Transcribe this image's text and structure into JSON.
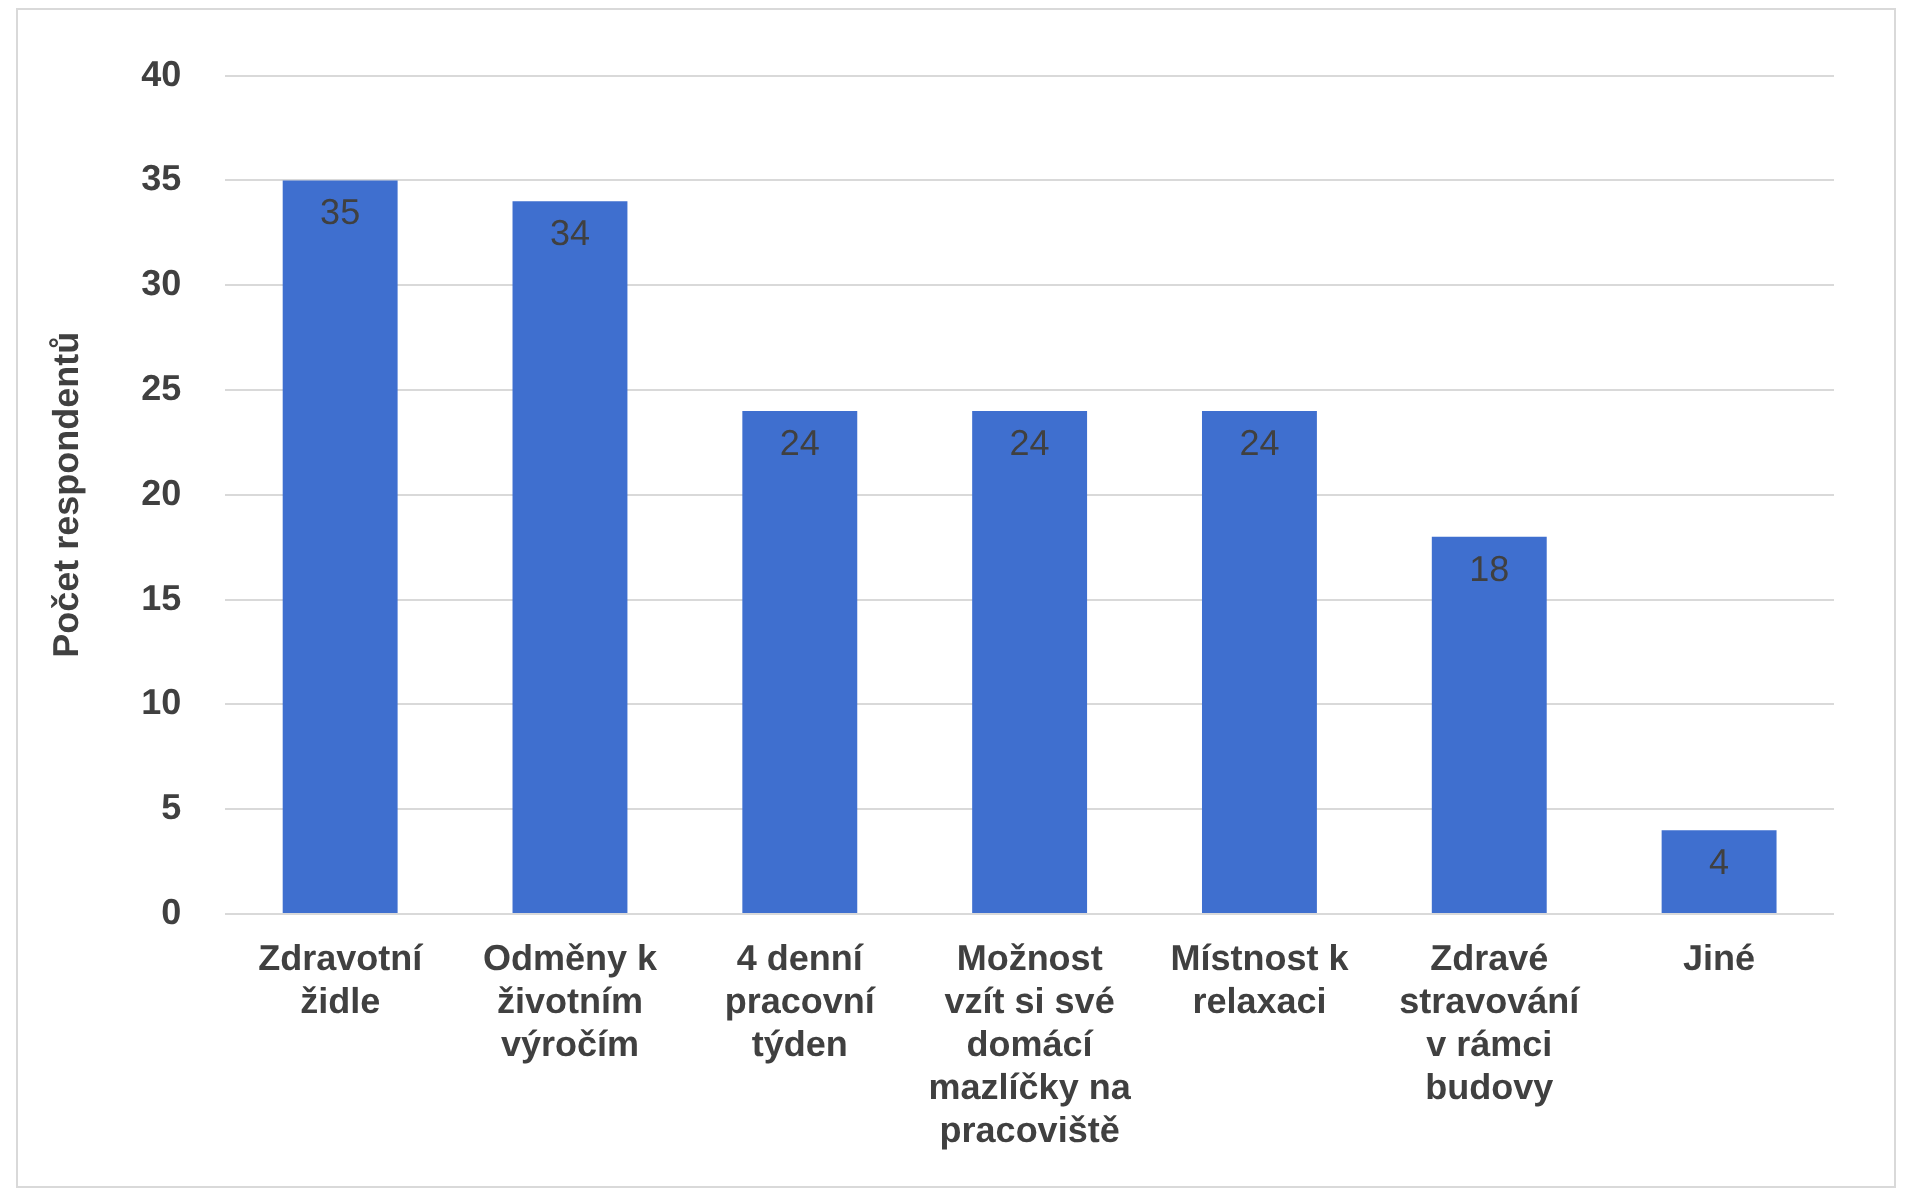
{
  "chart_data": {
    "type": "bar",
    "ylabel": "Počet respondentů",
    "categories": [
      "Zdravotní židle",
      "Odměny k životním výročím",
      "4 denní pracovní týden",
      "Možnost vzít si své domácí mazlíčky na pracoviště",
      "Místnost k relaxaci",
      "Zdravé stravování v rámci budovy",
      "Jiné"
    ],
    "values": [
      35,
      34,
      24,
      24,
      24,
      18,
      4
    ],
    "color": "#3f6fcf",
    "ylim": [
      0,
      40
    ],
    "yticks": [
      0,
      5,
      10,
      15,
      20,
      25,
      30,
      35,
      40
    ],
    "grid": "y",
    "data_labels": true,
    "legend": false
  }
}
